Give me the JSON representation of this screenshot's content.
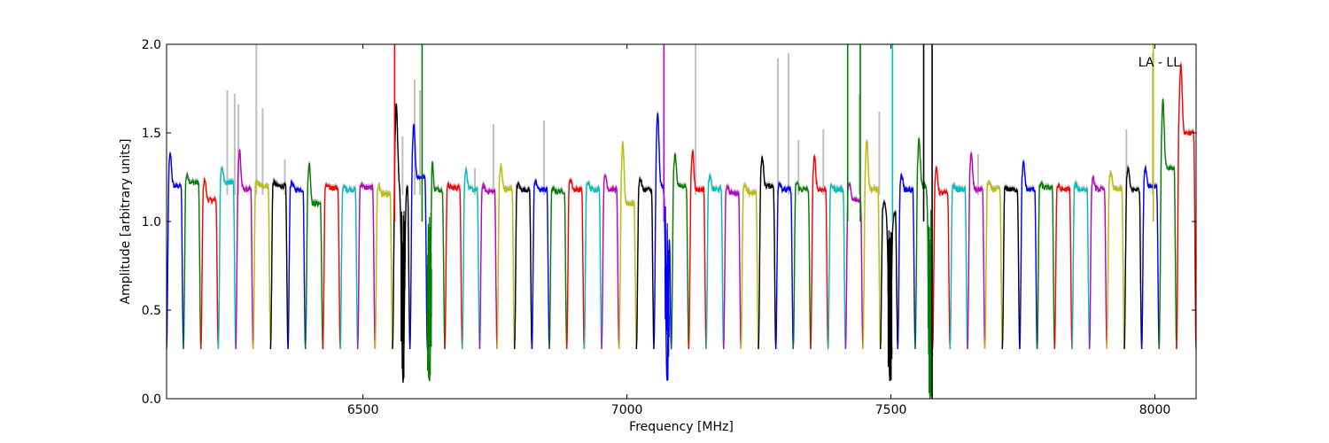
{
  "chart_data": {
    "type": "line",
    "xlabel": "Frequency [MHz]",
    "ylabel": "Amplitude [arbitrary units]",
    "xlim": [
      6128,
      8078
    ],
    "ylim": [
      0.0,
      2.0
    ],
    "xticks": [
      6500,
      7000,
      7500,
      8000
    ],
    "xtick_labels": [
      "6500",
      "7000",
      "7500",
      "8000"
    ],
    "yticks": [
      0.0,
      0.5,
      1.0,
      1.5,
      2.0
    ],
    "ytick_labels": [
      "0.0",
      "0.5",
      "1.0",
      "1.5",
      "2.0"
    ],
    "annotation": "LA - LL",
    "grid": false,
    "color_cycle": [
      "#0000ff",
      "#008000",
      "#ff0000",
      "#00bfbf",
      "#bf00bf",
      "#bfbf00",
      "#000000"
    ],
    "background_trace_color": "#c0c0c0",
    "channel": {
      "floor": 0.28,
      "min_frequency": 6128,
      "max_frequency": 8078,
      "edge_width_mhz": 4.5
    },
    "channels": [
      {
        "start": 6128,
        "end": 6160,
        "level": 1.2,
        "peak": 1.38
      },
      {
        "start": 6160,
        "end": 6193,
        "level": 1.22,
        "peak": 1.26
      },
      {
        "start": 6193,
        "end": 6226,
        "level": 1.12,
        "peak": 1.24
      },
      {
        "start": 6226,
        "end": 6259,
        "level": 1.22,
        "peak": 1.3
      },
      {
        "start": 6259,
        "end": 6292,
        "level": 1.18,
        "peak": 1.4
      },
      {
        "start": 6292,
        "end": 6325,
        "level": 1.2,
        "peak": 1.22
      },
      {
        "start": 6325,
        "end": 6358,
        "level": 1.2,
        "peak": 1.22
      },
      {
        "start": 6358,
        "end": 6391,
        "level": 1.18,
        "peak": 1.22
      },
      {
        "start": 6391,
        "end": 6424,
        "level": 1.1,
        "peak": 1.33
      },
      {
        "start": 6424,
        "end": 6457,
        "level": 1.19,
        "peak": 1.2
      },
      {
        "start": 6457,
        "end": 6490,
        "level": 1.18,
        "peak": 1.19
      },
      {
        "start": 6490,
        "end": 6523,
        "level": 1.19,
        "peak": 1.21
      },
      {
        "start": 6523,
        "end": 6556,
        "level": 1.15,
        "peak": 1.2
      },
      {
        "start": 6556,
        "end": 6589,
        "level": 1.2,
        "peak": 1.66,
        "rfi": {
          "at": 6576,
          "min": 0.09
        }
      },
      {
        "start": 6589,
        "end": 6622,
        "level": 1.25,
        "peak": 1.55
      },
      {
        "start": 6622,
        "end": 6655,
        "level": 1.18,
        "peak": 1.64,
        "rfi": {
          "at": 6626,
          "min": 0.09
        }
      },
      {
        "start": 6655,
        "end": 6688,
        "level": 1.19,
        "peak": 1.2
      },
      {
        "start": 6688,
        "end": 6721,
        "level": 1.18,
        "peak": 1.29
      },
      {
        "start": 6721,
        "end": 6754,
        "level": 1.17,
        "peak": 1.2
      },
      {
        "start": 6754,
        "end": 6787,
        "level": 1.18,
        "peak": 1.31
      },
      {
        "start": 6787,
        "end": 6820,
        "level": 1.18,
        "peak": 1.21
      },
      {
        "start": 6820,
        "end": 6853,
        "level": 1.18,
        "peak": 1.22
      },
      {
        "start": 6853,
        "end": 6886,
        "level": 1.17,
        "peak": 1.18
      },
      {
        "start": 6886,
        "end": 6919,
        "level": 1.18,
        "peak": 1.24
      },
      {
        "start": 6919,
        "end": 6952,
        "level": 1.18,
        "peak": 1.22
      },
      {
        "start": 6952,
        "end": 6985,
        "level": 1.18,
        "peak": 1.26
      },
      {
        "start": 6985,
        "end": 7018,
        "level": 1.1,
        "peak": 1.44
      },
      {
        "start": 7018,
        "end": 7051,
        "level": 1.18,
        "peak": 1.24
      },
      {
        "start": 7051,
        "end": 7084,
        "level": 1.2,
        "peak": 1.62,
        "rfi": {
          "at": 7076,
          "min": 0.1
        }
      },
      {
        "start": 7084,
        "end": 7117,
        "level": 1.2,
        "peak": 1.38
      },
      {
        "start": 7117,
        "end": 7150,
        "level": 1.18,
        "peak": 1.4
      },
      {
        "start": 7150,
        "end": 7183,
        "level": 1.18,
        "peak": 1.25
      },
      {
        "start": 7183,
        "end": 7216,
        "level": 1.16,
        "peak": 1.2
      },
      {
        "start": 7216,
        "end": 7249,
        "level": 1.16,
        "peak": 1.2
      },
      {
        "start": 7249,
        "end": 7282,
        "level": 1.2,
        "peak": 1.36
      },
      {
        "start": 7282,
        "end": 7315,
        "level": 1.18,
        "peak": 1.22
      },
      {
        "start": 7315,
        "end": 7348,
        "level": 1.18,
        "peak": 1.22
      },
      {
        "start": 7348,
        "end": 7381,
        "level": 1.18,
        "peak": 1.36
      },
      {
        "start": 7381,
        "end": 7414,
        "level": 1.18,
        "peak": 1.2
      },
      {
        "start": 7414,
        "end": 7447,
        "level": 1.12,
        "peak": 1.22
      },
      {
        "start": 7447,
        "end": 7480,
        "level": 1.18,
        "peak": 1.46
      },
      {
        "start": 7480,
        "end": 7513,
        "level": 1.05,
        "peak": 1.1,
        "rfi": {
          "at": 7498,
          "min": 0.1
        }
      },
      {
        "start": 7513,
        "end": 7546,
        "level": 1.18,
        "peak": 1.26
      },
      {
        "start": 7546,
        "end": 7579,
        "level": 1.2,
        "peak": 1.46,
        "rfi": {
          "at": 7574,
          "min": 0.0
        }
      },
      {
        "start": 7579,
        "end": 7612,
        "level": 1.16,
        "peak": 1.3
      },
      {
        "start": 7612,
        "end": 7645,
        "level": 1.18,
        "peak": 1.2
      },
      {
        "start": 7645,
        "end": 7678,
        "level": 1.18,
        "peak": 1.38
      },
      {
        "start": 7678,
        "end": 7711,
        "level": 1.18,
        "peak": 1.22
      },
      {
        "start": 7711,
        "end": 7744,
        "level": 1.18,
        "peak": 1.19
      },
      {
        "start": 7744,
        "end": 7777,
        "level": 1.18,
        "peak": 1.33
      },
      {
        "start": 7777,
        "end": 7810,
        "level": 1.19,
        "peak": 1.21
      },
      {
        "start": 7810,
        "end": 7843,
        "level": 1.18,
        "peak": 1.2
      },
      {
        "start": 7843,
        "end": 7876,
        "level": 1.18,
        "peak": 1.21
      },
      {
        "start": 7876,
        "end": 7909,
        "level": 1.18,
        "peak": 1.24
      },
      {
        "start": 7909,
        "end": 7942,
        "level": 1.18,
        "peak": 1.28
      },
      {
        "start": 7942,
        "end": 7975,
        "level": 1.18,
        "peak": 1.3
      },
      {
        "start": 7975,
        "end": 8008,
        "level": 1.2,
        "peak": 1.3
      },
      {
        "start": 8008,
        "end": 8041,
        "level": 1.3,
        "peak": 1.68
      },
      {
        "start": 8041,
        "end": 8078,
        "level": 1.5,
        "peak": 1.9
      }
    ],
    "spikes": [
      {
        "x": 6560,
        "y_min": 1.0,
        "y_max": 2.0,
        "color": "#ff0000"
      },
      {
        "x": 6612,
        "y_min": 1.0,
        "y_max": 2.0,
        "color": "#008000"
      },
      {
        "x": 7070,
        "y_min": 1.0,
        "y_max": 2.0,
        "color": "#bf00bf"
      },
      {
        "x": 7418,
        "y_min": 1.0,
        "y_max": 2.0,
        "color": "#008000"
      },
      {
        "x": 7442,
        "y_min": 1.0,
        "y_max": 2.0,
        "color": "#008000"
      },
      {
        "x": 7503,
        "y_min": 1.0,
        "y_max": 2.0,
        "color": "#00bfbf"
      },
      {
        "x": 7562,
        "y_min": 1.0,
        "y_max": 2.0,
        "color": "#000000"
      },
      {
        "x": 7578,
        "y_min": 0.0,
        "y_max": 2.0,
        "color": "#000000"
      },
      {
        "x": 7997,
        "y_min": 1.0,
        "y_max": 2.0,
        "color": "#bfbf00"
      }
    ],
    "background_spikes": [
      {
        "x": 6243,
        "y": 1.74
      },
      {
        "x": 6257,
        "y": 1.72
      },
      {
        "x": 6264,
        "y": 1.66
      },
      {
        "x": 6298,
        "y": 2.0
      },
      {
        "x": 6310,
        "y": 1.64
      },
      {
        "x": 6352,
        "y": 1.35
      },
      {
        "x": 6575,
        "y": 1.48
      },
      {
        "x": 6598,
        "y": 1.8
      },
      {
        "x": 6608,
        "y": 1.74
      },
      {
        "x": 6712,
        "y": 1.3
      },
      {
        "x": 6747,
        "y": 1.55
      },
      {
        "x": 6843,
        "y": 1.57
      },
      {
        "x": 7130,
        "y": 2.0
      },
      {
        "x": 7286,
        "y": 1.92
      },
      {
        "x": 7306,
        "y": 1.95
      },
      {
        "x": 7325,
        "y": 1.46
      },
      {
        "x": 7372,
        "y": 1.52
      },
      {
        "x": 7440,
        "y": 1.72
      },
      {
        "x": 7478,
        "y": 1.62
      },
      {
        "x": 7665,
        "y": 1.38
      },
      {
        "x": 7946,
        "y": 1.52
      },
      {
        "x": 7996,
        "y": 1.95
      }
    ]
  }
}
